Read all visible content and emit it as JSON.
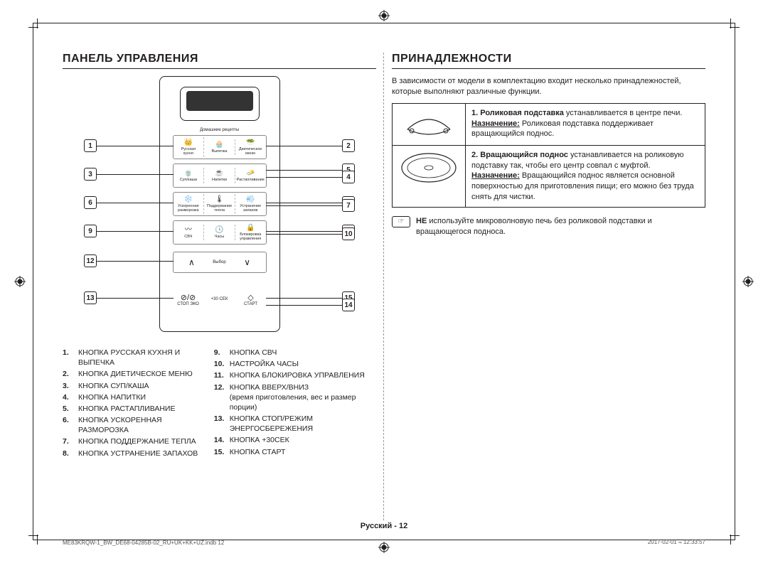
{
  "headings": {
    "left": "ПАНЕЛЬ УПРАВЛЕНИЯ",
    "right": "ПРИНАДЛЕЖНОСТИ"
  },
  "panel": {
    "section_recipes": "Домашние рецепты",
    "row1": [
      "Русская\nкухня",
      "Выпечка",
      "Диетическое\nменю"
    ],
    "row2": [
      "Суп/каша",
      "Напитки",
      "Растапливание"
    ],
    "row3": [
      "Ускоренная\nразморозка",
      "Поддержание\nтепла",
      "Устранение\nзапахов"
    ],
    "row4": [
      "СВЧ",
      "Часы",
      "Блокировка\nуправления"
    ],
    "select_label": "Выбор",
    "bottom": {
      "stop": "СТОП  ЭКО",
      "sec30": "+30 СЕК",
      "start": "СТАРТ"
    },
    "callouts_left": [
      1,
      3,
      6,
      9,
      12,
      13
    ],
    "callouts_right": [
      2,
      5,
      4,
      8,
      7,
      11,
      10,
      15,
      14
    ]
  },
  "legend": {
    "colA": [
      {
        "n": "1.",
        "t": "КНОПКА РУССКАЯ КУХНЯ И ВЫПЕЧКА"
      },
      {
        "n": "2.",
        "t": "КНОПКА ДИЕТИЧЕСКОЕ МЕНЮ"
      },
      {
        "n": "3.",
        "t": "КНОПКА СУП/КАША"
      },
      {
        "n": "4.",
        "t": "КНОПКА НАПИТКИ"
      },
      {
        "n": "5.",
        "t": "КНОПКА РАСТАПЛИВАНИЕ"
      },
      {
        "n": "6.",
        "t": "КНОПКА УСКОРЕННАЯ РАЗМОРОЗКА"
      },
      {
        "n": "7.",
        "t": "КНОПКА ПОДДЕРЖАНИЕ ТЕПЛА"
      },
      {
        "n": "8.",
        "t": "КНОПКА УСТРАНЕНИЕ ЗАПАХОВ"
      }
    ],
    "colB": [
      {
        "n": "9.",
        "t": "КНОПКА СВЧ"
      },
      {
        "n": "10.",
        "t": "НАСТРОЙКА ЧАСЫ"
      },
      {
        "n": "11.",
        "t": "КНОПКА БЛОКИРОВКА УПРАВЛЕНИЯ"
      },
      {
        "n": "12.",
        "t": "КНОПКА ВВЕРХ/ВНИЗ\n(время приготовления, вес и размер порции)"
      },
      {
        "n": "13.",
        "t": "КНОПКА СТОП/РЕЖИМ ЭНЕРГОСБЕРЕЖЕНИЯ"
      },
      {
        "n": "14.",
        "t": "КНОПКА +30СЕК"
      },
      {
        "n": "15.",
        "t": "КНОПКА СТАРТ"
      }
    ]
  },
  "right": {
    "intro": "В зависимости от модели в комплектацию входит несколько принадлежностей, которые выполняют различные функции.",
    "rows": [
      {
        "num": "1.",
        "bold": "Роликовая подставка",
        "rest": " устанавливается в центре печи.",
        "purpose_label": "Назначение:",
        "purpose": "Роликовая подставка поддерживает вращающийся поднос."
      },
      {
        "num": "2.",
        "bold": "Вращающийся поднос",
        "rest": " устанавливается на роликовую подставку так, чтобы его центр совпал с муфтой.",
        "purpose_label": "Назначение:",
        "purpose": "Вращающийся поднос является основной поверхностью для приготовления пищи; его можно без труда снять для чистки."
      }
    ],
    "note_sym": "☞",
    "note_bold": "НЕ",
    "note": " используйте микроволновую печь без роликовой подставки и вращающегося подноса."
  },
  "footer": "Русский - 12",
  "meta_left": "ME83KRQW-1_BW_DE68-04285B-02_RU+UK+KK+UZ.indb   12",
  "meta_right": "2017-02-01   ⫬ 12:33:57"
}
